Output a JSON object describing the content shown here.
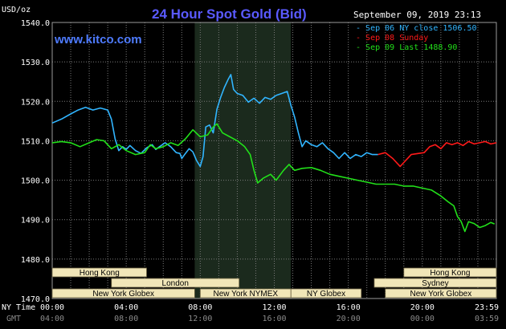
{
  "header": {
    "title": "24 Hour Spot Gold (Bid)",
    "website": "www.kitco.com",
    "datetime": "September 09, 2019 23:13"
  },
  "colors": {
    "background": "#000000",
    "grid": "#7a7a7a",
    "shade": "#1b2a1d",
    "blue": "#31b5ff",
    "red": "#ff1a1a",
    "green": "#22e01a",
    "session_box": "#f1e6b8",
    "title": "#5a5aff",
    "website": "#4e7bff"
  },
  "chart_data": {
    "type": "line",
    "title": "24 Hour Spot Gold (Bid)",
    "ylabel": "USD/oz",
    "ylim": [
      1470,
      1540
    ],
    "yticks": [
      "1470.0",
      "1480.0",
      "1490.0",
      "1500.0",
      "1510.0",
      "1520.0",
      "1530.0",
      "1540.0"
    ],
    "xlim": [
      0,
      24
    ],
    "x_unit": "hours (New York time)",
    "xticks_ny": [
      "00:00",
      "04:00",
      "08:00",
      "12:00",
      "16:00",
      "20:00",
      "23:59"
    ],
    "xticks_gmt": [
      "04:00",
      "08:00",
      "12:00",
      "16:00",
      "20:00",
      "00:00",
      "03:59"
    ],
    "xtick_positions": [
      0,
      4,
      8,
      12,
      16,
      20,
      23.98
    ],
    "x_row_label_ny": "NY Time",
    "x_row_label_gmt": "GMT",
    "highlight_hours": [
      7.7,
      12.9
    ],
    "grid": true,
    "legend": "top-right",
    "series": [
      {
        "name": "Sep 06 NY close",
        "value_label": "1506.50",
        "color": "#31b5ff",
        "points": [
          [
            0,
            1514.5
          ],
          [
            0.5,
            1515.5
          ],
          [
            1,
            1516.8
          ],
          [
            1.4,
            1517.8
          ],
          [
            1.8,
            1518.5
          ],
          [
            2.2,
            1517.8
          ],
          [
            2.6,
            1518.3
          ],
          [
            3.0,
            1517.8
          ],
          [
            3.2,
            1515.5
          ],
          [
            3.4,
            1510.5
          ],
          [
            3.6,
            1507.5
          ],
          [
            3.8,
            1508.5
          ],
          [
            4.0,
            1507.8
          ],
          [
            4.2,
            1508.8
          ],
          [
            4.5,
            1507.5
          ],
          [
            4.8,
            1506.8
          ],
          [
            5.1,
            1508.2
          ],
          [
            5.4,
            1509.0
          ],
          [
            5.6,
            1507.8
          ],
          [
            5.8,
            1508.5
          ],
          [
            6.1,
            1509.5
          ],
          [
            6.4,
            1508.5
          ],
          [
            6.7,
            1507.0
          ],
          [
            6.9,
            1506.8
          ],
          [
            7.0,
            1505.5
          ],
          [
            7.2,
            1506.8
          ],
          [
            7.4,
            1508.0
          ],
          [
            7.6,
            1507.2
          ],
          [
            7.8,
            1505.0
          ],
          [
            8.0,
            1503.5
          ],
          [
            8.15,
            1506.0
          ],
          [
            8.3,
            1513.5
          ],
          [
            8.5,
            1514.0
          ],
          [
            8.7,
            1512.0
          ],
          [
            8.9,
            1518.0
          ],
          [
            9.1,
            1521.0
          ],
          [
            9.3,
            1523.5
          ],
          [
            9.5,
            1525.5
          ],
          [
            9.65,
            1526.8
          ],
          [
            9.8,
            1523.0
          ],
          [
            10.0,
            1522.0
          ],
          [
            10.3,
            1521.5
          ],
          [
            10.6,
            1519.8
          ],
          [
            10.9,
            1520.8
          ],
          [
            11.2,
            1519.5
          ],
          [
            11.5,
            1521.0
          ],
          [
            11.8,
            1520.5
          ],
          [
            12.1,
            1521.5
          ],
          [
            12.4,
            1522.0
          ],
          [
            12.7,
            1522.5
          ],
          [
            12.9,
            1519.0
          ],
          [
            13.1,
            1516.0
          ],
          [
            13.3,
            1512.0
          ],
          [
            13.5,
            1508.5
          ],
          [
            13.7,
            1510.0
          ],
          [
            14.0,
            1509.0
          ],
          [
            14.3,
            1508.5
          ],
          [
            14.6,
            1509.5
          ],
          [
            14.9,
            1508.0
          ],
          [
            15.2,
            1507.0
          ],
          [
            15.5,
            1505.5
          ],
          [
            15.8,
            1507.0
          ],
          [
            16.1,
            1505.5
          ],
          [
            16.4,
            1506.5
          ],
          [
            16.7,
            1506.0
          ],
          [
            17.0,
            1507.0
          ],
          [
            17.3,
            1506.5
          ],
          [
            17.6,
            1506.5
          ]
        ]
      },
      {
        "name": "Sep 08 Sunday",
        "value_label": "",
        "color": "#ff1a1a",
        "points": [
          [
            17.6,
            1506.5
          ],
          [
            18.0,
            1507.0
          ],
          [
            18.4,
            1505.5
          ],
          [
            18.8,
            1503.5
          ],
          [
            19.1,
            1505.0
          ],
          [
            19.4,
            1506.5
          ],
          [
            19.8,
            1506.8
          ],
          [
            20.1,
            1507.0
          ],
          [
            20.4,
            1508.5
          ],
          [
            20.7,
            1509.0
          ],
          [
            21.0,
            1508.0
          ],
          [
            21.3,
            1509.5
          ],
          [
            21.6,
            1509.0
          ],
          [
            21.9,
            1509.5
          ],
          [
            22.2,
            1508.8
          ],
          [
            22.5,
            1509.8
          ],
          [
            22.8,
            1509.2
          ],
          [
            23.1,
            1509.5
          ],
          [
            23.4,
            1509.8
          ],
          [
            23.7,
            1509.2
          ],
          [
            24.0,
            1509.5
          ]
        ]
      },
      {
        "name": "Sep 09 Last",
        "value_label": "1488.90",
        "color": "#22e01a",
        "points": [
          [
            0,
            1509.5
          ],
          [
            0.5,
            1509.8
          ],
          [
            1,
            1509.5
          ],
          [
            1.5,
            1508.5
          ],
          [
            2,
            1509.5
          ],
          [
            2.4,
            1510.3
          ],
          [
            2.8,
            1510.0
          ],
          [
            3.2,
            1508.0
          ],
          [
            3.6,
            1509.0
          ],
          [
            4.0,
            1507.5
          ],
          [
            4.5,
            1506.5
          ],
          [
            5.0,
            1507.0
          ],
          [
            5.3,
            1509.0
          ],
          [
            5.6,
            1508.0
          ],
          [
            6.0,
            1508.5
          ],
          [
            6.4,
            1509.5
          ],
          [
            6.8,
            1508.8
          ],
          [
            7.2,
            1510.5
          ],
          [
            7.6,
            1512.8
          ],
          [
            8.0,
            1511.0
          ],
          [
            8.4,
            1511.5
          ],
          [
            8.7,
            1513.5
          ],
          [
            8.9,
            1514.3
          ],
          [
            9.2,
            1512.0
          ],
          [
            9.6,
            1511.0
          ],
          [
            10.0,
            1510.0
          ],
          [
            10.4,
            1508.5
          ],
          [
            10.7,
            1506.5
          ],
          [
            10.9,
            1502.5
          ],
          [
            11.1,
            1499.3
          ],
          [
            11.4,
            1500.5
          ],
          [
            11.8,
            1501.5
          ],
          [
            12.1,
            1500.0
          ],
          [
            12.5,
            1502.5
          ],
          [
            12.8,
            1504.0
          ],
          [
            13.1,
            1502.5
          ],
          [
            13.5,
            1503.0
          ],
          [
            14.0,
            1503.2
          ],
          [
            14.5,
            1502.5
          ],
          [
            15.0,
            1501.5
          ],
          [
            15.5,
            1501.0
          ],
          [
            16.0,
            1500.5
          ],
          [
            16.5,
            1500.0
          ],
          [
            17.0,
            1499.5
          ],
          [
            17.5,
            1499.0
          ],
          [
            18.0,
            1499.0
          ],
          [
            18.5,
            1499.0
          ],
          [
            19.0,
            1498.5
          ],
          [
            19.5,
            1498.5
          ],
          [
            20.0,
            1498.0
          ],
          [
            20.5,
            1497.5
          ],
          [
            21.0,
            1496.0
          ],
          [
            21.4,
            1494.5
          ],
          [
            21.7,
            1493.5
          ],
          [
            21.9,
            1490.8
          ],
          [
            22.1,
            1489.5
          ],
          [
            22.3,
            1487.0
          ],
          [
            22.5,
            1489.5
          ],
          [
            22.8,
            1489.0
          ],
          [
            23.1,
            1488.0
          ],
          [
            23.4,
            1488.5
          ],
          [
            23.7,
            1489.3
          ],
          [
            23.9,
            1488.9
          ]
        ]
      }
    ],
    "sessions": [
      {
        "label": "Hong Kong",
        "row": 0,
        "start": 0,
        "end": 5.1
      },
      {
        "label": "London",
        "row": 1,
        "start": 3.2,
        "end": 10.1
      },
      {
        "label": "New York Globex",
        "row": 2,
        "start": 0,
        "end": 7.7
      },
      {
        "label": "New York NYMEX",
        "row": 2,
        "start": 8.0,
        "end": 12.9
      },
      {
        "label": "NY Globex",
        "row": 2,
        "start": 12.9,
        "end": 16.7
      },
      {
        "label": "Hong Kong",
        "row": 0,
        "start": 19.0,
        "end": 24
      },
      {
        "label": "Sydney",
        "row": 1,
        "start": 17.4,
        "end": 24
      },
      {
        "label": "New York Globex",
        "row": 2,
        "start": 18.0,
        "end": 24
      }
    ]
  }
}
